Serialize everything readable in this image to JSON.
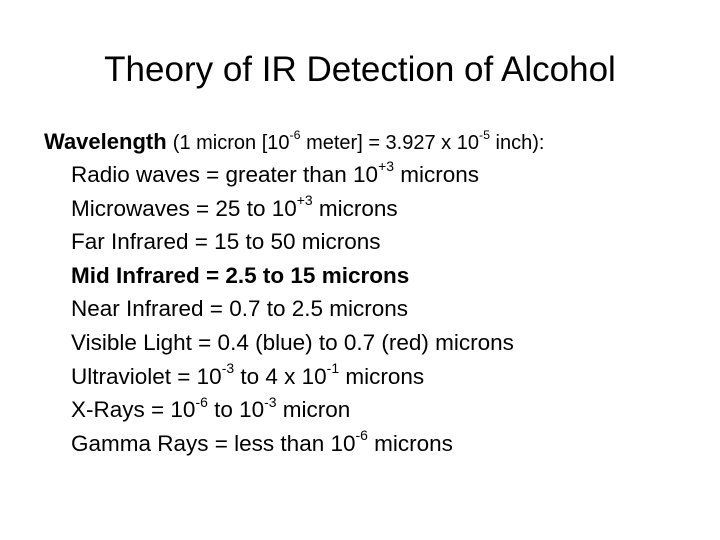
{
  "slide": {
    "title": "Theory of IR Detection of Alcohol",
    "heading": {
      "label": "Wavelength",
      "note_part1": "(1 micron [10",
      "note_exp1": "-6",
      "note_part2": " meter] = 3.927 x 10",
      "note_exp2": "-5",
      "note_part3": " inch):"
    },
    "items": [
      {
        "a": "Radio waves = greater than 10",
        "exp1": "+3",
        "b": " microns"
      },
      {
        "a": "Microwaves = 25 to 10",
        "exp1": "+3",
        "b": " microns"
      },
      {
        "a": "Far Infrared = 15 to 50 microns"
      },
      {
        "a": "Mid Infrared = 2.5 to 15 microns"
      },
      {
        "a": "Near Infrared = 0.7 to 2.5 microns"
      },
      {
        "a": "Visible Light = 0.4 (blue) to 0.7 (red) microns"
      },
      {
        "a": "Ultraviolet = 10",
        "exp1": "-3",
        "b": " to 4 x 10",
        "exp2": "-1",
        "c": " microns"
      },
      {
        "a": "X-Rays = 10",
        "exp1": "-6",
        "b": " to 10",
        "exp2": "-3",
        "c": " micron"
      },
      {
        "a": "Gamma Rays = less than 10",
        "exp1": "-6",
        "b": " microns"
      }
    ]
  }
}
